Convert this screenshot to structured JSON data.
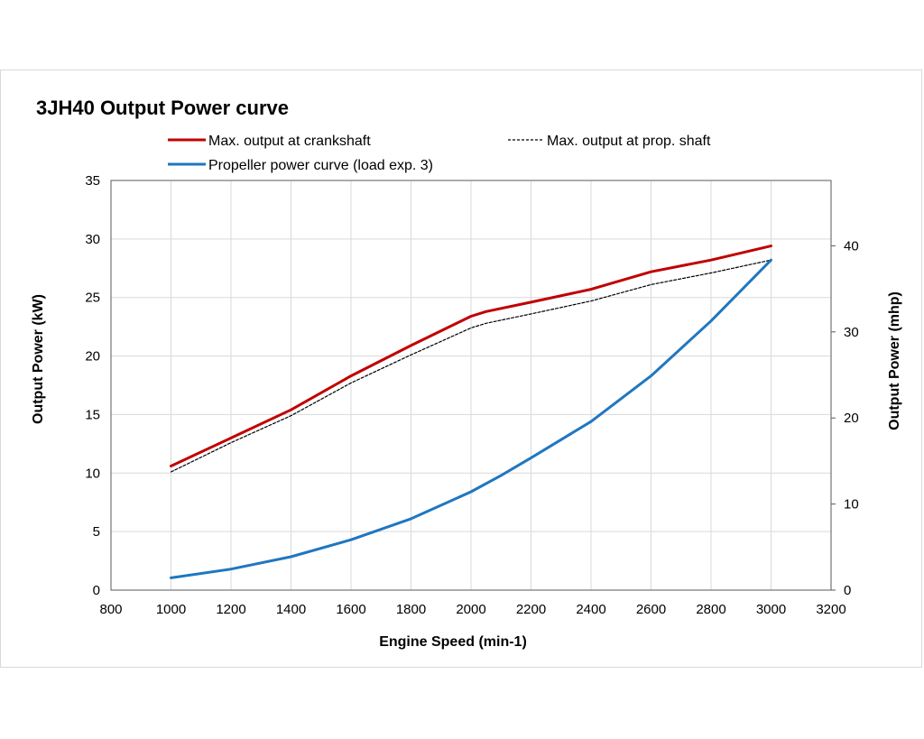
{
  "chart_data": {
    "type": "line",
    "title": "3JH40 Output Power curve",
    "xlabel": "Engine Speed (min-1)",
    "ylabel": "Output Power (kW)",
    "y2label": "Output Power (mhp)",
    "xlim": [
      800,
      3200
    ],
    "ylim": [
      0,
      35
    ],
    "y2lim": [
      0,
      47.59
    ],
    "xticks": [
      800,
      1000,
      1200,
      1400,
      1600,
      1800,
      2000,
      2200,
      2400,
      2600,
      2800,
      3000,
      3200
    ],
    "yticks": [
      0,
      5,
      10,
      15,
      20,
      25,
      30,
      35
    ],
    "y2ticks": [
      0,
      10,
      20,
      30,
      40
    ],
    "grid": true,
    "legend_position": "top",
    "series": [
      {
        "name": "Max. output at crankshaft",
        "color": "#c00000",
        "style": "solid",
        "x": [
          1000,
          1200,
          1400,
          1600,
          1800,
          2000,
          2050,
          2200,
          2400,
          2600,
          2800,
          3000
        ],
        "y": [
          10.6,
          13.0,
          15.4,
          18.3,
          20.9,
          23.4,
          23.8,
          24.6,
          25.7,
          27.2,
          28.2,
          29.4
        ]
      },
      {
        "name": "Max. output at prop. shaft",
        "color": "#000000",
        "style": "dashed",
        "x": [
          1000,
          1200,
          1400,
          1600,
          1800,
          2000,
          2050,
          2200,
          2400,
          2600,
          2800,
          3000
        ],
        "y": [
          10.1,
          12.6,
          14.9,
          17.7,
          20.1,
          22.4,
          22.8,
          23.6,
          24.7,
          26.1,
          27.1,
          28.2
        ]
      },
      {
        "name": "Propeller power curve (load exp. 3)",
        "color": "#1f77c0",
        "style": "solid",
        "x": [
          1000,
          1200,
          1400,
          1600,
          1800,
          2000,
          2100,
          2200,
          2400,
          2600,
          2800,
          3000
        ],
        "y": [
          1.05,
          1.8,
          2.85,
          4.3,
          6.1,
          8.4,
          9.8,
          11.3,
          14.4,
          18.3,
          23.0,
          28.2
        ]
      }
    ]
  }
}
